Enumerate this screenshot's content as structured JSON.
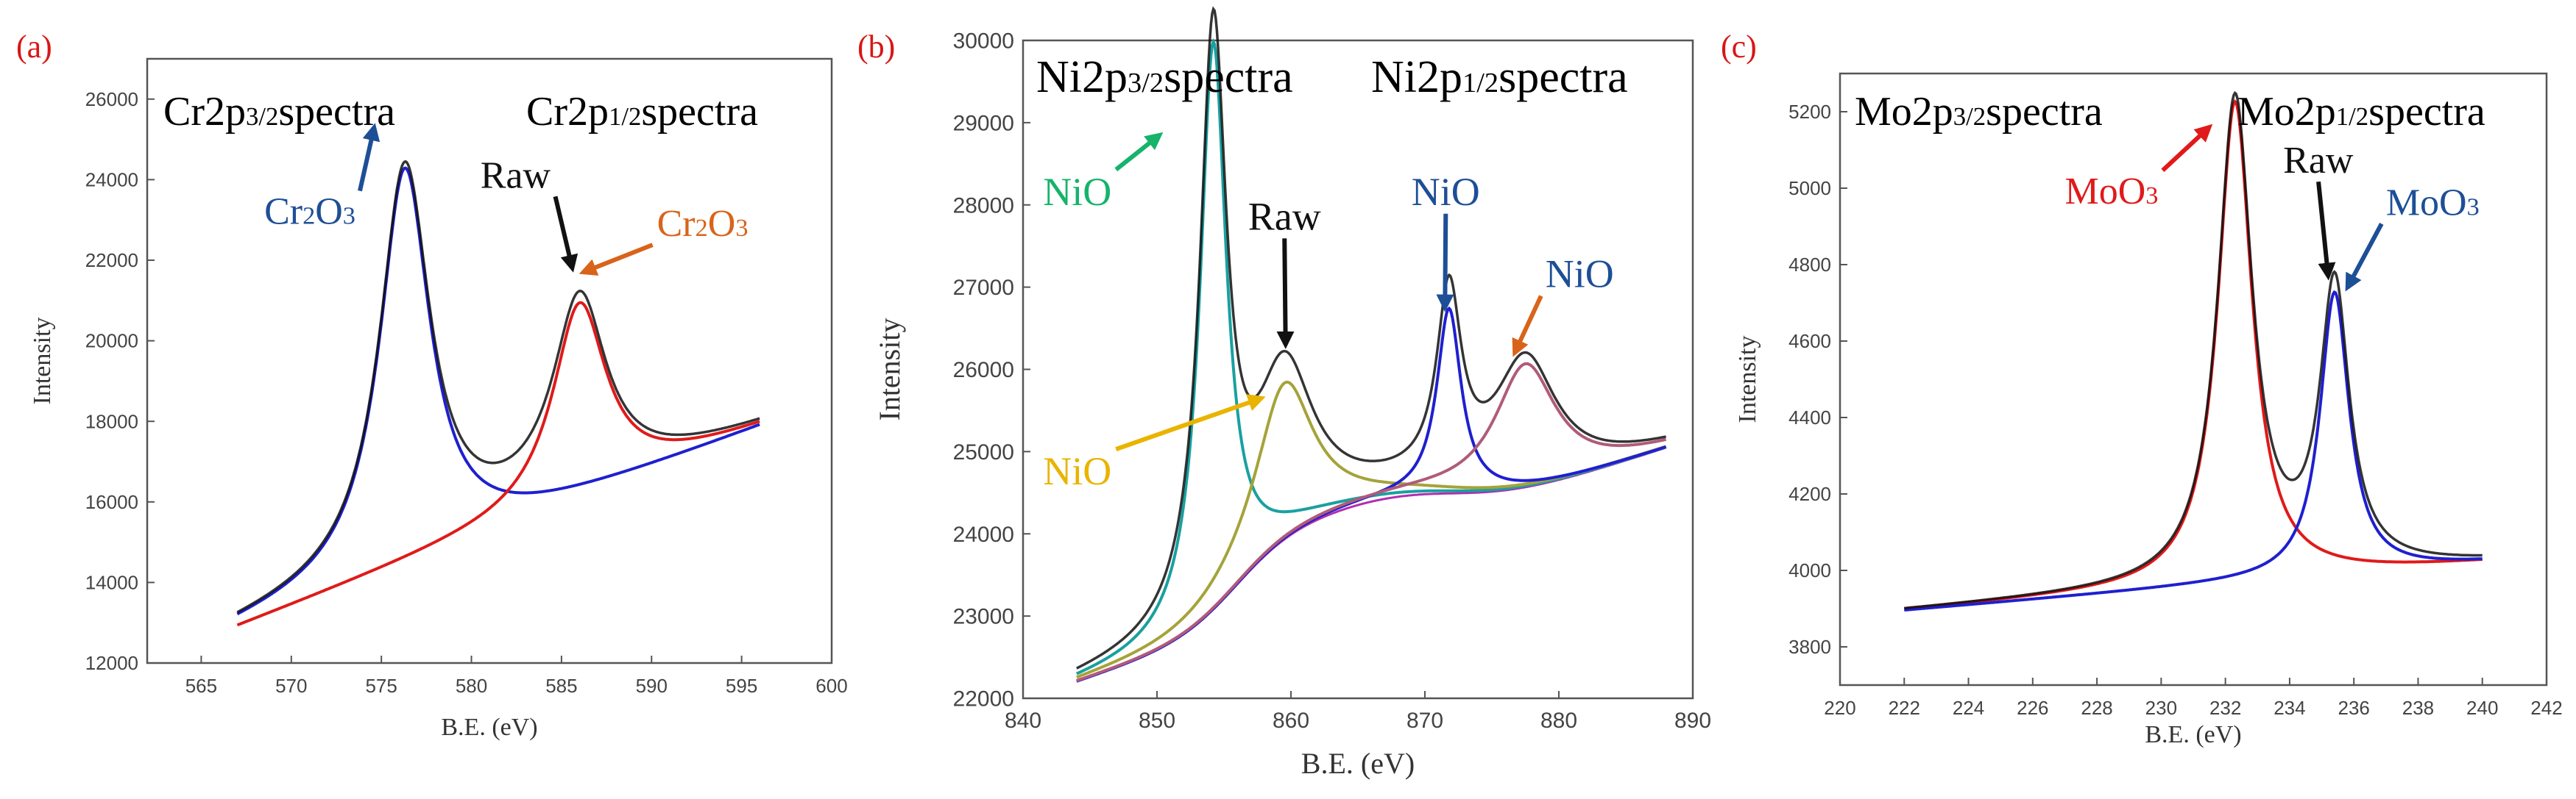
{
  "colors": {
    "axis": "#555555",
    "tick_label": "#444444",
    "raw": "#111111",
    "blue": "#1f1fd0",
    "red": "#e01a1a",
    "orange": "#e8630f",
    "green": "#11b86a",
    "yellow": "#f2c200",
    "teal": "#1aa0a0",
    "olive": "#a5a33a",
    "magenta": "#b12db1",
    "mauve": "#b05b7a",
    "panel_label": "#d91616",
    "label_blue": "#1d4f96",
    "label_orange": "#d8641a",
    "label_green": "#16b36a",
    "label_yellow": "#e9b400",
    "label_red": "#e01a1a"
  },
  "chart_data": [
    {
      "panel": "(a)",
      "type": "line",
      "xlabel": "B.E. (eV)",
      "ylabel": "Intensity",
      "xlim": [
        562,
        600
      ],
      "ylim": [
        12000,
        27000
      ],
      "xticks": [
        565,
        570,
        575,
        580,
        585,
        590,
        595,
        600
      ],
      "yticks": [
        12000,
        14000,
        16000,
        18000,
        20000,
        22000,
        24000,
        26000
      ],
      "headers": [
        {
          "text": "Cr2p",
          "sub": "3/2",
          "tail": "spectra"
        },
        {
          "text": "Cr2p",
          "sub": "1/2",
          "tail": "spectra"
        }
      ],
      "annotations": [
        {
          "label": "Cr",
          "sub": "2",
          "label2": "O",
          "sub2": "3",
          "color_key": "label_blue",
          "arrow_key": "label_blue",
          "tx": 568.5,
          "ty": 22900,
          "ax": 574.6,
          "ay": 25300
        },
        {
          "label": "Cr",
          "sub": "2",
          "label2": "O",
          "sub2": "3",
          "color_key": "label_orange",
          "arrow_key": "label_orange",
          "tx": 590.3,
          "ty": 22600,
          "ax": 586.2,
          "ay": 21700
        },
        {
          "label": "Raw",
          "color_key": "raw",
          "arrow_key": "raw",
          "tx": 580.5,
          "ty": 23800,
          "ax": 585.6,
          "ay": 21800
        }
      ],
      "baseline": {
        "x_start": 567,
        "x_end": 596,
        "y_start": 12900,
        "y_end": 17850
      },
      "series": [
        {
          "name": "Cr2O3 (2p3/2)",
          "color_key": "blue",
          "x0": 576.3,
          "w": 1.7,
          "amp": 9800,
          "xmin": 567,
          "xmax": 596
        },
        {
          "name": "Cr2O3 (2p1/2)",
          "color_key": "red",
          "x0": 586.0,
          "w": 1.8,
          "amp": 4800,
          "xmin": 567,
          "xmax": 596
        }
      ]
    },
    {
      "panel": "(b)",
      "type": "line",
      "xlabel": "B.E. (eV)",
      "ylabel": "Intensity",
      "xlim": [
        840,
        890
      ],
      "ylim": [
        22000,
        30000
      ],
      "xticks": [
        840,
        850,
        860,
        870,
        880,
        890
      ],
      "yticks": [
        22000,
        23000,
        24000,
        25000,
        26000,
        27000,
        28000,
        29000,
        30000
      ],
      "headers": [
        {
          "text": "Ni2p",
          "sub": "3/2",
          "tail": "spectra"
        },
        {
          "text": "Ni2p",
          "sub": "1/2",
          "tail": "spectra"
        }
      ],
      "annotations": [
        {
          "label": "NiO",
          "color_key": "label_green",
          "arrow_key": "label_green",
          "tx": 841.5,
          "ty": 28000,
          "ax": 850.2,
          "ay": 28850
        },
        {
          "label": "NiO",
          "color_key": "label_yellow",
          "arrow_key": "label_yellow",
          "tx": 841.5,
          "ty": 24600,
          "ax": 857.8,
          "ay": 25650
        },
        {
          "label": "Raw",
          "color_key": "raw",
          "arrow_key": "raw",
          "tx": 856.8,
          "ty": 27700,
          "ax": 859.6,
          "ay": 26300
        },
        {
          "label": "NiO",
          "color_key": "label_blue",
          "arrow_key": "label_blue",
          "tx": 869.0,
          "ty": 28000,
          "ax": 871.5,
          "ay": 26750
        },
        {
          "label": "NiO",
          "color_key": "label_blue",
          "arrow_key": "label_orange",
          "tx": 879.0,
          "ty": 27000,
          "ax": 876.7,
          "ay": 26200
        }
      ],
      "baseline": {
        "x_start": 844,
        "x_end": 888,
        "y_start": 22200,
        "y_end": 24550
      },
      "series": [
        {
          "name": "NiO (2p3/2 main)",
          "color_key": "teal",
          "x0": 854.2,
          "w": 1.2,
          "amp": 6900,
          "xmin": 844,
          "xmax": 888
        },
        {
          "name": "NiO (2p3/2 satellite)",
          "color_key": "olive",
          "x0": 859.5,
          "w": 2.6,
          "amp": 1900,
          "xmin": 844,
          "xmax": 888
        },
        {
          "name": "NiO (2p1/2 main)",
          "color_key": "blue",
          "x0": 871.8,
          "w": 1.1,
          "amp": 2250,
          "xmin": 844,
          "xmax": 888
        },
        {
          "name": "NiO (2p1/2 satellite)",
          "color_key": "mauve",
          "x0": 877.5,
          "w": 2.8,
          "amp": 1500,
          "xmin": 844,
          "xmax": 888
        }
      ]
    },
    {
      "panel": "(c)",
      "type": "line",
      "xlabel": "B.E. (eV)",
      "ylabel": "Intensity",
      "xlim": [
        220,
        242
      ],
      "ylim": [
        3700,
        5300
      ],
      "xticks": [
        220,
        222,
        224,
        226,
        228,
        230,
        232,
        234,
        236,
        238,
        240,
        242
      ],
      "yticks": [
        3800,
        4000,
        4200,
        4400,
        4600,
        4800,
        5000,
        5200
      ],
      "headers": [
        {
          "text": "Mo2p",
          "sub": "3/2",
          "tail": "spectra"
        },
        {
          "text": "Mo2p",
          "sub": "1/2",
          "tail": "spectra"
        }
      ],
      "annotations": [
        {
          "label": "MoO",
          "sub": "3",
          "color_key": "label_red",
          "arrow_key": "label_red",
          "tx": 227.0,
          "ty": 4960,
          "ax": 231.5,
          "ay": 5160
        },
        {
          "label": "Raw",
          "color_key": "raw",
          "arrow_key": "raw",
          "tx": 233.8,
          "ty": 5040,
          "ax": 235.2,
          "ay": 4770
        },
        {
          "label": "MoO",
          "sub": "3",
          "color_key": "label_blue",
          "arrow_key": "label_blue",
          "tx": 237.0,
          "ty": 4930,
          "ax": 235.8,
          "ay": 4740
        }
      ],
      "baseline": {
        "x_start": 222,
        "x_end": 240,
        "y_start": 3895,
        "y_end": 4020
      },
      "series": [
        {
          "name": "MoO3 (2p3/2)",
          "color_key": "red",
          "x0": 232.3,
          "w": 0.65,
          "amp": 1260,
          "xmin": 222,
          "xmax": 240
        },
        {
          "name": "MoO3 (2p1/2)",
          "color_key": "blue",
          "x0": 235.4,
          "w": 0.55,
          "amp": 740,
          "xmin": 222,
          "xmax": 240
        }
      ]
    }
  ]
}
